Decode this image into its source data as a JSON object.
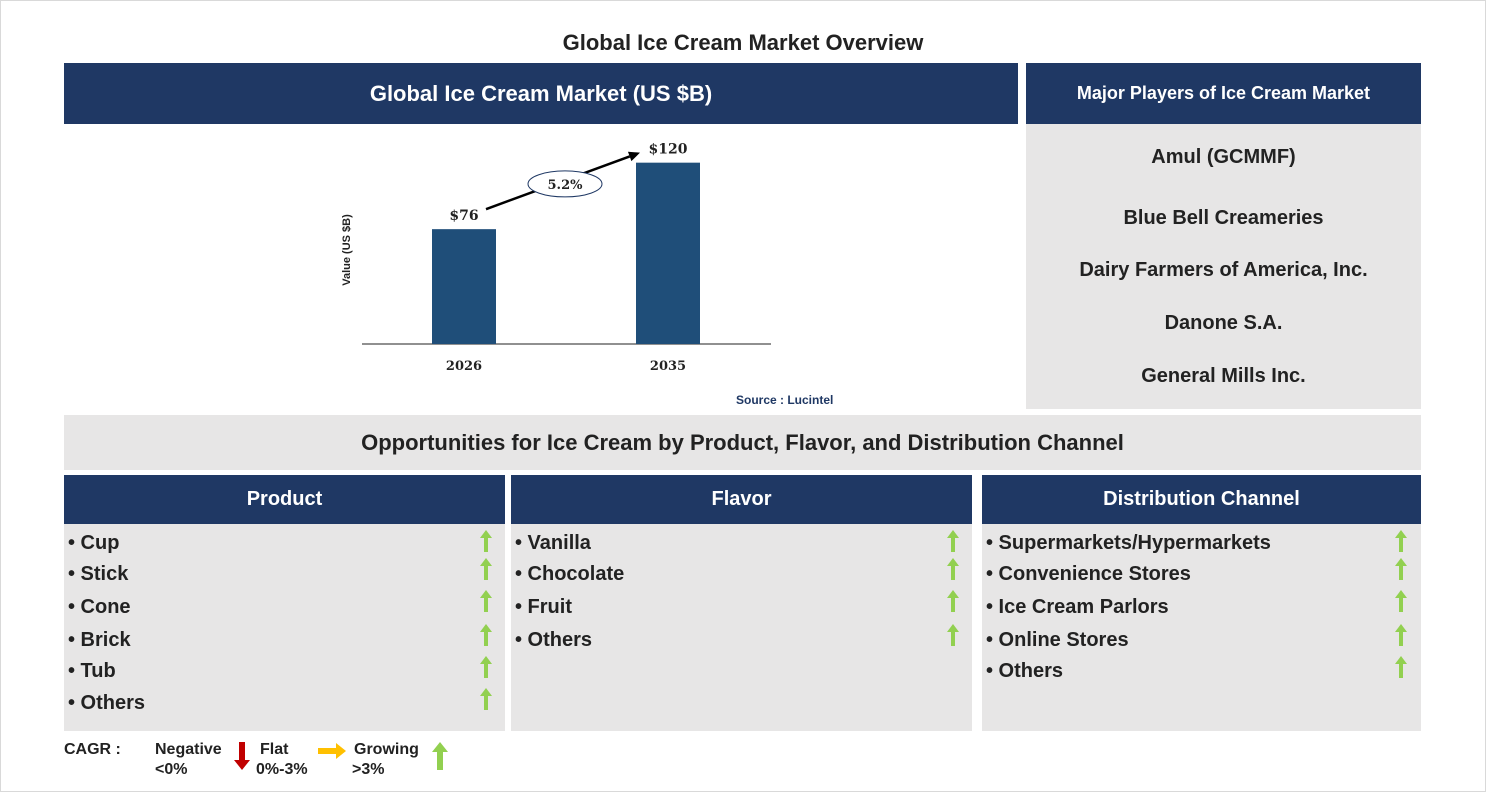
{
  "title": "Global Ice Cream Market Overview",
  "chart_header": "Global Ice Cream Market (US $B)",
  "chart_data": {
    "type": "bar",
    "categories": [
      "2026",
      "2035"
    ],
    "values": [
      76,
      120
    ],
    "data_labels": [
      "$76",
      "$120"
    ],
    "ylabel": "Value (US $B)",
    "ylim": [
      0,
      135
    ],
    "grid": false,
    "cagr_annotation": "5.2%",
    "bar_color": "#1f4e79"
  },
  "source": "Source : Lucintel",
  "players": {
    "header": "Major Players of Ice Cream Market",
    "items": [
      "Amul (GCMMF)",
      "Blue Bell Creameries",
      "Dairy Farmers of America, Inc.",
      "Danone S.A.",
      "General Mills Inc."
    ]
  },
  "opportunities_title": "Opportunities for Ice Cream by Product, Flavor, and Distribution Channel",
  "segments": [
    {
      "header": "Product",
      "items": [
        "• Cup",
        "• Stick",
        "• Cone",
        "• Brick",
        "• Tub",
        "• Others"
      ]
    },
    {
      "header": "Flavor",
      "items": [
        "• Vanilla",
        "• Chocolate",
        "• Fruit",
        "• Others"
      ]
    },
    {
      "header": "Distribution Channel",
      "items": [
        "• Supermarkets/Hypermarkets",
        "• Convenience Stores",
        "• Ice Cream Parlors",
        "• Online Stores",
        "• Others"
      ]
    }
  ],
  "legend": {
    "label": "CAGR :",
    "negative": "Negative",
    "negative_range": "<0%",
    "flat": "Flat",
    "flat_range": "0%-3%",
    "growing": "Growing",
    "growing_range": ">3%"
  },
  "colors": {
    "navy": "#1f3864",
    "panel_gray": "#e7e6e6",
    "growing_arrow": "#92d050",
    "negative_arrow": "#c00000",
    "flat_arrow": "#ffc000"
  }
}
